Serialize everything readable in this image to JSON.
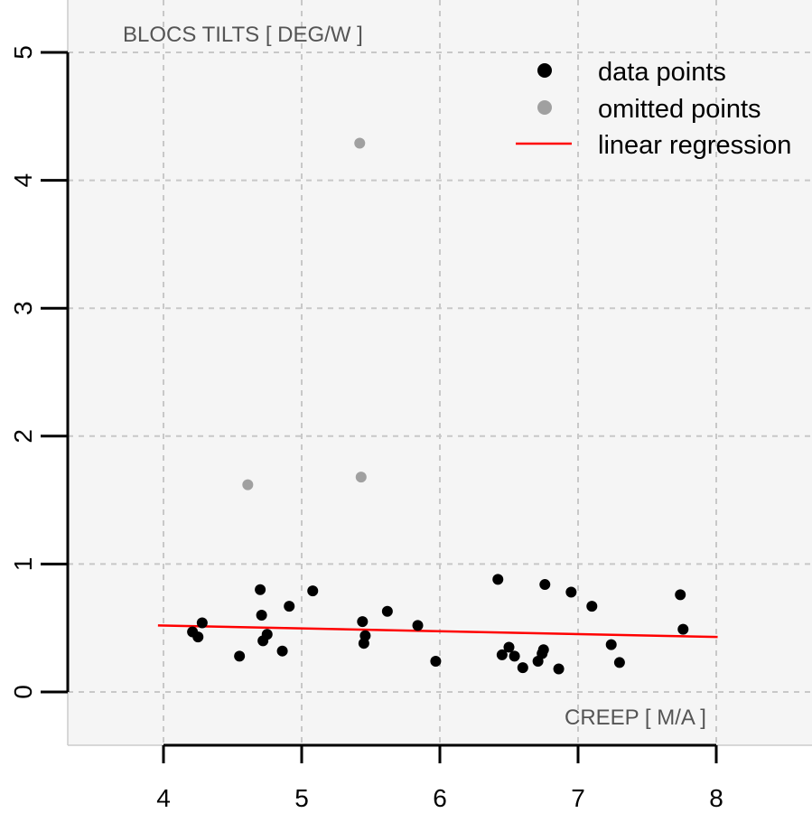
{
  "chart_data": {
    "type": "scatter",
    "xlabel": "CREEP  [ M/A ]",
    "ylabel": "BLOCS TILTS  [ DEG/W ]",
    "xlim": [
      3.3,
      8.7
    ],
    "ylim": [
      -0.42,
      5.4
    ],
    "x_ticks": [
      4,
      5,
      6,
      7,
      8
    ],
    "y_ticks": [
      0,
      1,
      2,
      3,
      4,
      5
    ],
    "grid": true,
    "legend_position": "top-right",
    "legend": [
      {
        "label": "data points",
        "kind": "point",
        "color": "#000000"
      },
      {
        "label": "omitted points",
        "kind": "point",
        "color": "#a0a0a0"
      },
      {
        "label": "linear regression",
        "kind": "line",
        "color": "#ff0000"
      }
    ],
    "series": [
      {
        "name": "data points",
        "color": "#000000",
        "points": [
          [
            4.21,
            0.47
          ],
          [
            4.25,
            0.43
          ],
          [
            4.28,
            0.54
          ],
          [
            4.55,
            0.28
          ],
          [
            4.7,
            0.8
          ],
          [
            4.71,
            0.6
          ],
          [
            4.72,
            0.4
          ],
          [
            4.75,
            0.45
          ],
          [
            4.86,
            0.32
          ],
          [
            4.91,
            0.67
          ],
          [
            5.08,
            0.79
          ],
          [
            5.44,
            0.55
          ],
          [
            5.45,
            0.38
          ],
          [
            5.46,
            0.44
          ],
          [
            5.62,
            0.63
          ],
          [
            5.84,
            0.52
          ],
          [
            5.97,
            0.24
          ],
          [
            6.42,
            0.88
          ],
          [
            6.45,
            0.29
          ],
          [
            6.5,
            0.35
          ],
          [
            6.54,
            0.28
          ],
          [
            6.6,
            0.19
          ],
          [
            6.71,
            0.24
          ],
          [
            6.74,
            0.3
          ],
          [
            6.75,
            0.33
          ],
          [
            6.76,
            0.84
          ],
          [
            6.86,
            0.18
          ],
          [
            6.95,
            0.78
          ],
          [
            7.1,
            0.67
          ],
          [
            7.24,
            0.37
          ],
          [
            7.3,
            0.23
          ],
          [
            7.74,
            0.76
          ],
          [
            7.76,
            0.49
          ]
        ]
      },
      {
        "name": "omitted points",
        "color": "#a0a0a0",
        "points": [
          [
            5.42,
            4.29
          ],
          [
            5.43,
            1.68
          ],
          [
            4.61,
            1.62
          ]
        ]
      }
    ],
    "regression": {
      "name": "linear regression",
      "color": "#ff0000",
      "x": [
        3.96,
        8.01
      ],
      "y": [
        0.52,
        0.43
      ]
    }
  }
}
